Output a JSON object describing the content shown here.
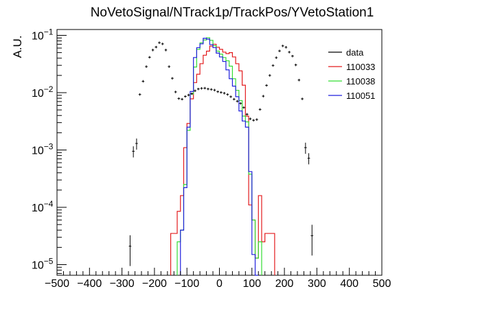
{
  "title": "NoVetoSignal/NTrack1p/TrackPos/YVetoStation1",
  "chart_data": {
    "type": "line",
    "title": "NoVetoSignal/NTrack1p/TrackPos/YVetoStation1",
    "xlabel": "",
    "ylabel": "A.U.",
    "xlim": [
      -500,
      500
    ],
    "ylim": [
      6e-06,
      0.12
    ],
    "yscale": "log",
    "x_ticks": [
      "−500",
      "−400",
      "−300",
      "−200",
      "−100",
      "0",
      "100",
      "200",
      "300",
      "400",
      "500"
    ],
    "y_ticks": [
      {
        "base": "10",
        "exp": "−5"
      },
      {
        "base": "10",
        "exp": "−4"
      },
      {
        "base": "10",
        "exp": "−3"
      },
      {
        "base": "10",
        "exp": "−2"
      },
      {
        "base": "10",
        "exp": "−1"
      }
    ],
    "legend_position": "top-right",
    "bin_width": 10,
    "series": [
      {
        "name": "data",
        "style": "points",
        "color": "#000000",
        "points": [
          [
            -275,
            2.1e-05
          ],
          [
            -265,
            0.00095
          ],
          [
            -255,
            0.0013
          ],
          [
            -245,
            0.0093
          ],
          [
            -235,
            0.0158
          ],
          [
            -225,
            0.0285
          ],
          [
            -215,
            0.0415
          ],
          [
            -205,
            0.0555
          ],
          [
            -195,
            0.0625
          ],
          [
            -185,
            0.0745
          ],
          [
            -175,
            0.071
          ],
          [
            -165,
            0.0555
          ],
          [
            -155,
            0.0285
          ],
          [
            -145,
            0.0178
          ],
          [
            -135,
            0.0103
          ],
          [
            -125,
            0.0079
          ],
          [
            -115,
            0.0077
          ],
          [
            -105,
            0.0086
          ],
          [
            -95,
            0.0091
          ],
          [
            -85,
            0.0096
          ],
          [
            -75,
            0.0108
          ],
          [
            -65,
            0.0116
          ],
          [
            -55,
            0.0119
          ],
          [
            -45,
            0.012
          ],
          [
            -35,
            0.0116
          ],
          [
            -25,
            0.0114
          ],
          [
            -15,
            0.0111
          ],
          [
            -5,
            0.0104
          ],
          [
            5,
            0.0101
          ],
          [
            15,
            0.0098
          ],
          [
            25,
            0.0093
          ],
          [
            35,
            0.0085
          ],
          [
            45,
            0.0077
          ],
          [
            55,
            0.0071
          ],
          [
            65,
            0.0065
          ],
          [
            75,
            0.0055
          ],
          [
            85,
            0.0042
          ],
          [
            95,
            0.0035
          ],
          [
            105,
            0.0033
          ],
          [
            115,
            0.0034
          ],
          [
            125,
            0.0051
          ],
          [
            135,
            0.0087
          ],
          [
            145,
            0.0134
          ],
          [
            155,
            0.02
          ],
          [
            165,
            0.0298
          ],
          [
            175,
            0.0408
          ],
          [
            185,
            0.0535
          ],
          [
            195,
            0.0655
          ],
          [
            205,
            0.062
          ],
          [
            215,
            0.051
          ],
          [
            225,
            0.0435
          ],
          [
            235,
            0.0305
          ],
          [
            245,
            0.0166
          ],
          [
            255,
            0.0078
          ],
          [
            265,
            0.0011
          ],
          [
            275,
            0.00072
          ],
          [
            285,
            3.2e-05
          ]
        ]
      },
      {
        "name": "110033",
        "style": "step",
        "color": "#e31a1c",
        "bins": [
          [
            -150,
            3.5e-05
          ],
          [
            -140,
            3.5e-05
          ],
          [
            -130,
            8.5e-05
          ],
          [
            -120,
            0.00016
          ],
          [
            -110,
            0.0011
          ],
          [
            -100,
            0.0029
          ],
          [
            -90,
            0.0078
          ],
          [
            -80,
            0.015
          ],
          [
            -70,
            0.021
          ],
          [
            -60,
            0.032
          ],
          [
            -50,
            0.045
          ],
          [
            -40,
            0.053
          ],
          [
            -30,
            0.065
          ],
          [
            -20,
            0.07
          ],
          [
            -10,
            0.062
          ],
          [
            0,
            0.057
          ],
          [
            10,
            0.051
          ],
          [
            20,
            0.048
          ],
          [
            30,
            0.05
          ],
          [
            40,
            0.042
          ],
          [
            50,
            0.032
          ],
          [
            60,
            0.024
          ],
          [
            70,
            0.0135
          ],
          [
            80,
            0.0039
          ],
          [
            90,
            0.00011
          ],
          [
            100,
            6e-05
          ],
          [
            110,
            1.3e-05
          ],
          [
            120,
            0.00016
          ],
          [
            130,
            2.5e-05
          ],
          [
            140,
            3.5e-05
          ],
          [
            150,
            3.5e-05
          ],
          [
            160,
            3.5e-05
          ]
        ]
      },
      {
        "name": "110038",
        "style": "step",
        "color": "#33dd33",
        "bins": [
          [
            -130,
            2.5e-05
          ],
          [
            -120,
            4e-05
          ],
          [
            -110,
            0.00025
          ],
          [
            -100,
            0.0022
          ],
          [
            -90,
            0.0095
          ],
          [
            -80,
            0.028
          ],
          [
            -70,
            0.057
          ],
          [
            -60,
            0.074
          ],
          [
            -50,
            0.083
          ],
          [
            -40,
            0.091
          ],
          [
            -30,
            0.082
          ],
          [
            -20,
            0.066
          ],
          [
            -10,
            0.053
          ],
          [
            0,
            0.047
          ],
          [
            10,
            0.041
          ],
          [
            20,
            0.036
          ],
          [
            30,
            0.029
          ],
          [
            40,
            0.0175
          ],
          [
            50,
            0.011
          ],
          [
            60,
            0.0073
          ],
          [
            70,
            0.0039
          ],
          [
            80,
            0.0031
          ],
          [
            90,
            0.00038
          ],
          [
            100,
            6e-05
          ],
          [
            110,
            1.3e-05
          ],
          [
            120,
            2.5e-05
          ]
        ]
      },
      {
        "name": "110051",
        "style": "step",
        "color": "#1f1fdd",
        "bins": [
          [
            -120,
            4e-05
          ],
          [
            -110,
            0.00022
          ],
          [
            -100,
            0.0025
          ],
          [
            -90,
            0.0105
          ],
          [
            -80,
            0.041
          ],
          [
            -70,
            0.061
          ],
          [
            -60,
            0.071
          ],
          [
            -50,
            0.089
          ],
          [
            -40,
            0.086
          ],
          [
            -30,
            0.069
          ],
          [
            -20,
            0.061
          ],
          [
            -10,
            0.049
          ],
          [
            0,
            0.042
          ],
          [
            10,
            0.035
          ],
          [
            20,
            0.025
          ],
          [
            30,
            0.0175
          ],
          [
            40,
            0.013
          ],
          [
            50,
            0.0085
          ],
          [
            60,
            0.0048
          ],
          [
            70,
            0.0032
          ],
          [
            80,
            0.0025
          ],
          [
            90,
            0.00042
          ],
          [
            100,
            1.5e-05
          ],
          [
            110,
            6e-06
          ]
        ]
      }
    ]
  }
}
